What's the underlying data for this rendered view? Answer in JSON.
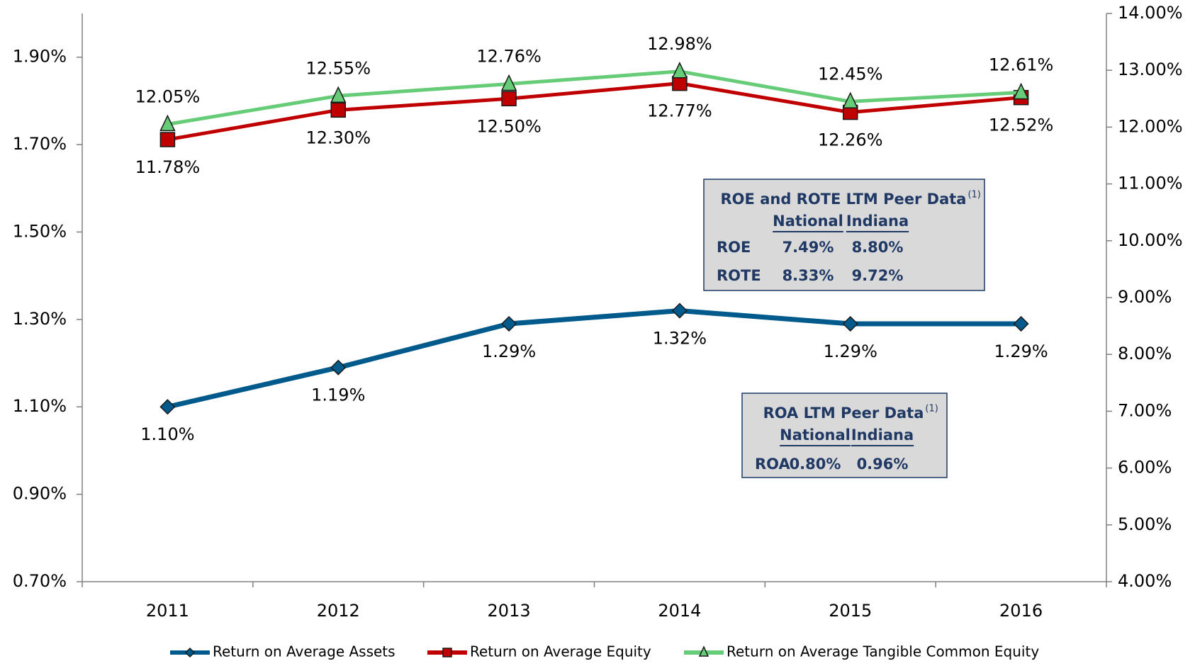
{
  "chart_data": {
    "type": "line",
    "categories": [
      "2011",
      "2012",
      "2013",
      "2014",
      "2015",
      "2016"
    ],
    "series": [
      {
        "name": "Return on Average Assets",
        "color": "#005a8c",
        "marker": "diamond",
        "axis": "y",
        "values": [
          1.1,
          1.19,
          1.29,
          1.32,
          1.29,
          1.29
        ],
        "value_labels": [
          "1.10%",
          "1.19%",
          "1.29%",
          "1.32%",
          "1.29%",
          "1.29%"
        ]
      },
      {
        "name": "Return on Average Equity",
        "color": "#c00000",
        "marker": "square",
        "axis": "y2",
        "values": [
          11.78,
          12.3,
          12.5,
          12.77,
          12.26,
          12.52
        ],
        "value_labels": [
          "11.78%",
          "12.30%",
          "12.50%",
          "12.77%",
          "12.26%",
          "12.52%"
        ]
      },
      {
        "name": "Return on Average Tangible Common Equity",
        "color": "#66cc77",
        "marker": "triangle",
        "axis": "y2",
        "values": [
          12.05,
          12.55,
          12.76,
          12.98,
          12.45,
          12.61
        ],
        "value_labels": [
          "12.05%",
          "12.55%",
          "12.76%",
          "12.98%",
          "12.45%",
          "12.61%"
        ]
      }
    ],
    "ylim": [
      0.7,
      2.0
    ],
    "yticks": [
      {
        "value": 0.7,
        "label": "0.70%"
      },
      {
        "value": 0.9,
        "label": "0.90%"
      },
      {
        "value": 1.1,
        "label": "1.10%"
      },
      {
        "value": 1.3,
        "label": "1.30%"
      },
      {
        "value": 1.5,
        "label": "1.50%"
      },
      {
        "value": 1.7,
        "label": "1.70%"
      },
      {
        "value": 1.9,
        "label": "1.90%"
      }
    ],
    "y2lim": [
      4,
      14
    ],
    "y2ticks": [
      {
        "value": 4,
        "label": "4.00%"
      },
      {
        "value": 5,
        "label": "5.00%"
      },
      {
        "value": 6,
        "label": "6.00%"
      },
      {
        "value": 7,
        "label": "7.00%"
      },
      {
        "value": 8,
        "label": "8.00%"
      },
      {
        "value": 9,
        "label": "9.00%"
      },
      {
        "value": 10,
        "label": "10.00%"
      },
      {
        "value": 11,
        "label": "11.00%"
      },
      {
        "value": 12,
        "label": "12.00%"
      },
      {
        "value": 13,
        "label": "13.00%"
      },
      {
        "value": 14,
        "label": "14.00%"
      }
    ],
    "legend": "bottom",
    "tables": [
      {
        "title": "ROE and ROTE LTM Peer Data",
        "note": "(1)",
        "columns": [
          "National",
          "Indiana"
        ],
        "rows": [
          {
            "label": "ROE",
            "cells": [
              "7.49%",
              "8.80%"
            ]
          },
          {
            "label": "ROTE",
            "cells": [
              "8.33%",
              "9.72%"
            ]
          }
        ]
      },
      {
        "title": "ROA LTM Peer Data",
        "note": "(1)",
        "columns": [
          "National",
          "Indiana"
        ],
        "rows": [
          {
            "label": "ROA",
            "cells": [
              "0.80%",
              "0.96%"
            ]
          }
        ]
      }
    ]
  }
}
